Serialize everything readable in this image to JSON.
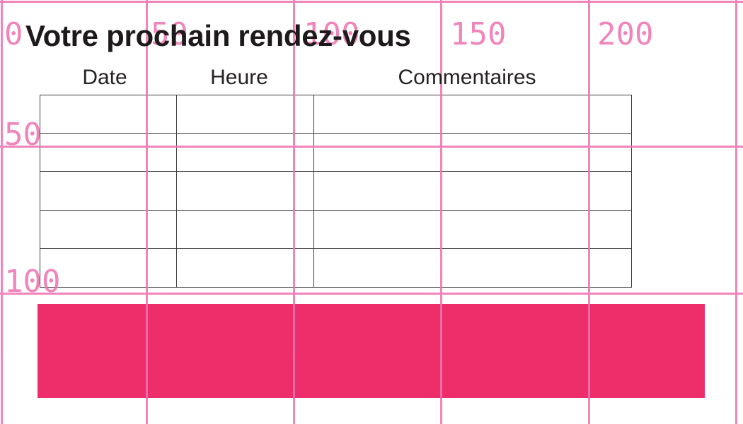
{
  "colors": {
    "bar": "#ED2E6A",
    "grid": "#EE74B2",
    "ink": "#1E1A1B",
    "tborder": "#3B3B3B"
  },
  "title": "Votre prochain rendez-vous",
  "table": {
    "headers": [
      {
        "label": "Date"
      },
      {
        "label": "Heure"
      },
      {
        "label": "Commentaires"
      }
    ],
    "row_count": 5,
    "column_count": 3,
    "cells_empty": true
  },
  "ruler": {
    "origin_label": "0",
    "top_labels": [
      "50",
      "100",
      "150",
      "200"
    ],
    "left_labels": [
      "50",
      "100"
    ]
  }
}
